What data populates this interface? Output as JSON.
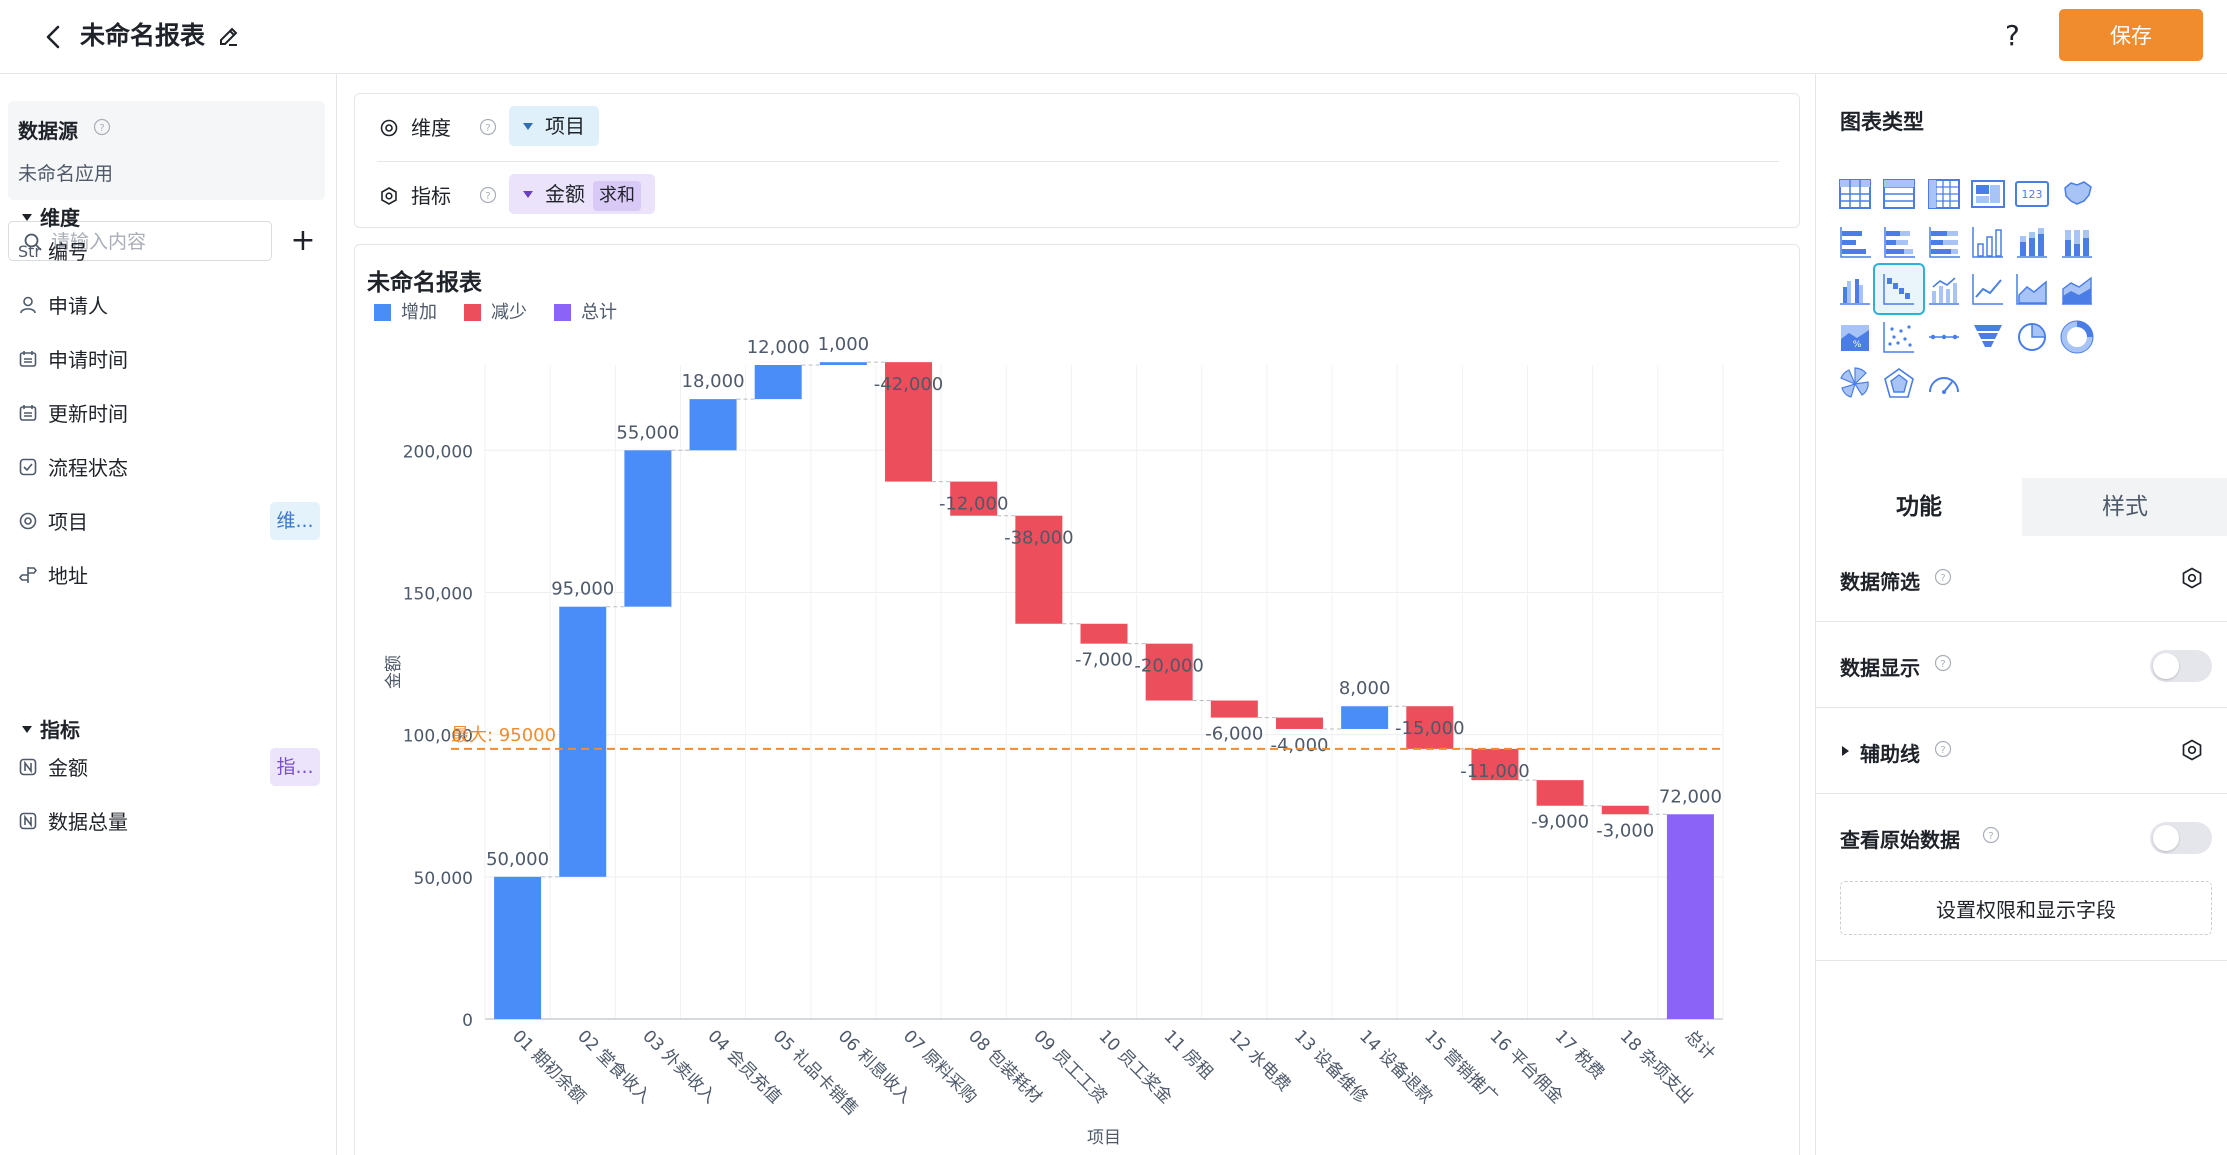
{
  "header": {
    "title": "未命名报表",
    "help": "?",
    "save_label": "保存"
  },
  "data_source": {
    "title": "数据源",
    "name": "未命名应用"
  },
  "search": {
    "placeholder": "请输入内容"
  },
  "dimensions": {
    "title": "维度",
    "fields": [
      {
        "label": "编号",
        "icon": "string-type-icon",
        "icon_text": "Str"
      },
      {
        "label": "申请人",
        "icon": "person-icon"
      },
      {
        "label": "申请时间",
        "icon": "calendar-icon"
      },
      {
        "label": "更新时间",
        "icon": "calendar-icon"
      },
      {
        "label": "流程状态",
        "icon": "checkbox-icon"
      },
      {
        "label": "项目",
        "icon": "radio-icon",
        "tag": "维..."
      },
      {
        "label": "地址",
        "icon": "location-icon"
      }
    ]
  },
  "metrics": {
    "title": "指标",
    "fields": [
      {
        "label": "金额",
        "icon": "number-icon",
        "tag": "指..."
      },
      {
        "label": "数据总量",
        "icon": "number-icon"
      }
    ]
  },
  "config": {
    "dim_label": "维度",
    "dim_value": "项目",
    "met_label": "指标",
    "met_value": "金额",
    "met_agg": "求和"
  },
  "chart_panel": {
    "title": "未命名报表"
  },
  "chart_data": {
    "type": "waterfall",
    "title": "未命名报表",
    "legend": [
      {
        "name": "增加",
        "color": "#4b8df8"
      },
      {
        "name": "减少",
        "color": "#ec4f5b"
      },
      {
        "name": "总计",
        "color": "#8b63f6"
      }
    ],
    "categories": [
      "01 期初余额",
      "02 堂食收入",
      "03 外卖收入",
      "04 会员充值",
      "05 礼品卡销售",
      "06 利息收入",
      "07 原料采购",
      "08 包装耗材",
      "09 员工工资",
      "10 员工奖金",
      "11 房租",
      "12 水电费",
      "13 设备维修",
      "14 设备退款",
      "15 营销推广",
      "16 平台佣金",
      "17 税费",
      "18 杂项支出",
      "总计"
    ],
    "values": [
      50000,
      95000,
      55000,
      18000,
      12000,
      1000,
      -42000,
      -12000,
      -38000,
      -7000,
      -20000,
      -6000,
      -4000,
      8000,
      -15000,
      -11000,
      -9000,
      -3000,
      72000
    ],
    "labels": [
      "50,000",
      "95,000",
      "55,000",
      "18,000",
      "12,000",
      "1,000",
      "-42,000",
      "-12,000",
      "-38,000",
      "-7,000",
      "-20,000",
      "-6,000",
      "-4,000",
      "8,000",
      "-15,000",
      "-11,000",
      "-9,000",
      "-3,000",
      "72,000"
    ],
    "total_index": 18,
    "ylabel": "金额",
    "xlabel": "项目",
    "ylim": [
      0,
      230000
    ],
    "yticks": [
      0,
      50000,
      100000,
      150000,
      200000
    ],
    "ytick_labels": [
      "0",
      "50,000",
      "100,000",
      "150,000",
      "200,000"
    ],
    "reference_line": {
      "value": 95000,
      "label": "最大: 95000",
      "color": "#f08c2d"
    },
    "grid": true,
    "legend_position": "top-left"
  },
  "chart_types": {
    "title": "图表类型",
    "icons": [
      "table-chart-icon",
      "detail-table-icon",
      "pivot-table-icon",
      "kpi-card-icon",
      "indicator-card-icon",
      "map-chart-icon",
      "bar-chart-icon",
      "stacked-bar-icon",
      "percent-bar-icon",
      "column-chart-icon",
      "stacked-column-icon",
      "percent-column-icon",
      "grouped-column-icon",
      "waterfall-chart-icon",
      "combo-chart-icon",
      "line-chart-icon",
      "area-chart-icon",
      "stacked-area-icon",
      "percent-area-icon",
      "scatter-chart-icon",
      "dot-line-icon",
      "funnel-chart-icon",
      "pie-chart-icon",
      "donut-chart-icon",
      "rose-chart-icon",
      "radar-chart-icon",
      "gauge-chart-icon"
    ],
    "selected_index": 13
  },
  "tabs": [
    {
      "label": "功能"
    },
    {
      "label": "样式"
    }
  ],
  "settings": {
    "data_filter": "数据筛选",
    "data_display": "数据显示",
    "aux_line": "辅助线",
    "raw_data": "查看原始数据",
    "perm_button": "设置权限和显示字段"
  }
}
